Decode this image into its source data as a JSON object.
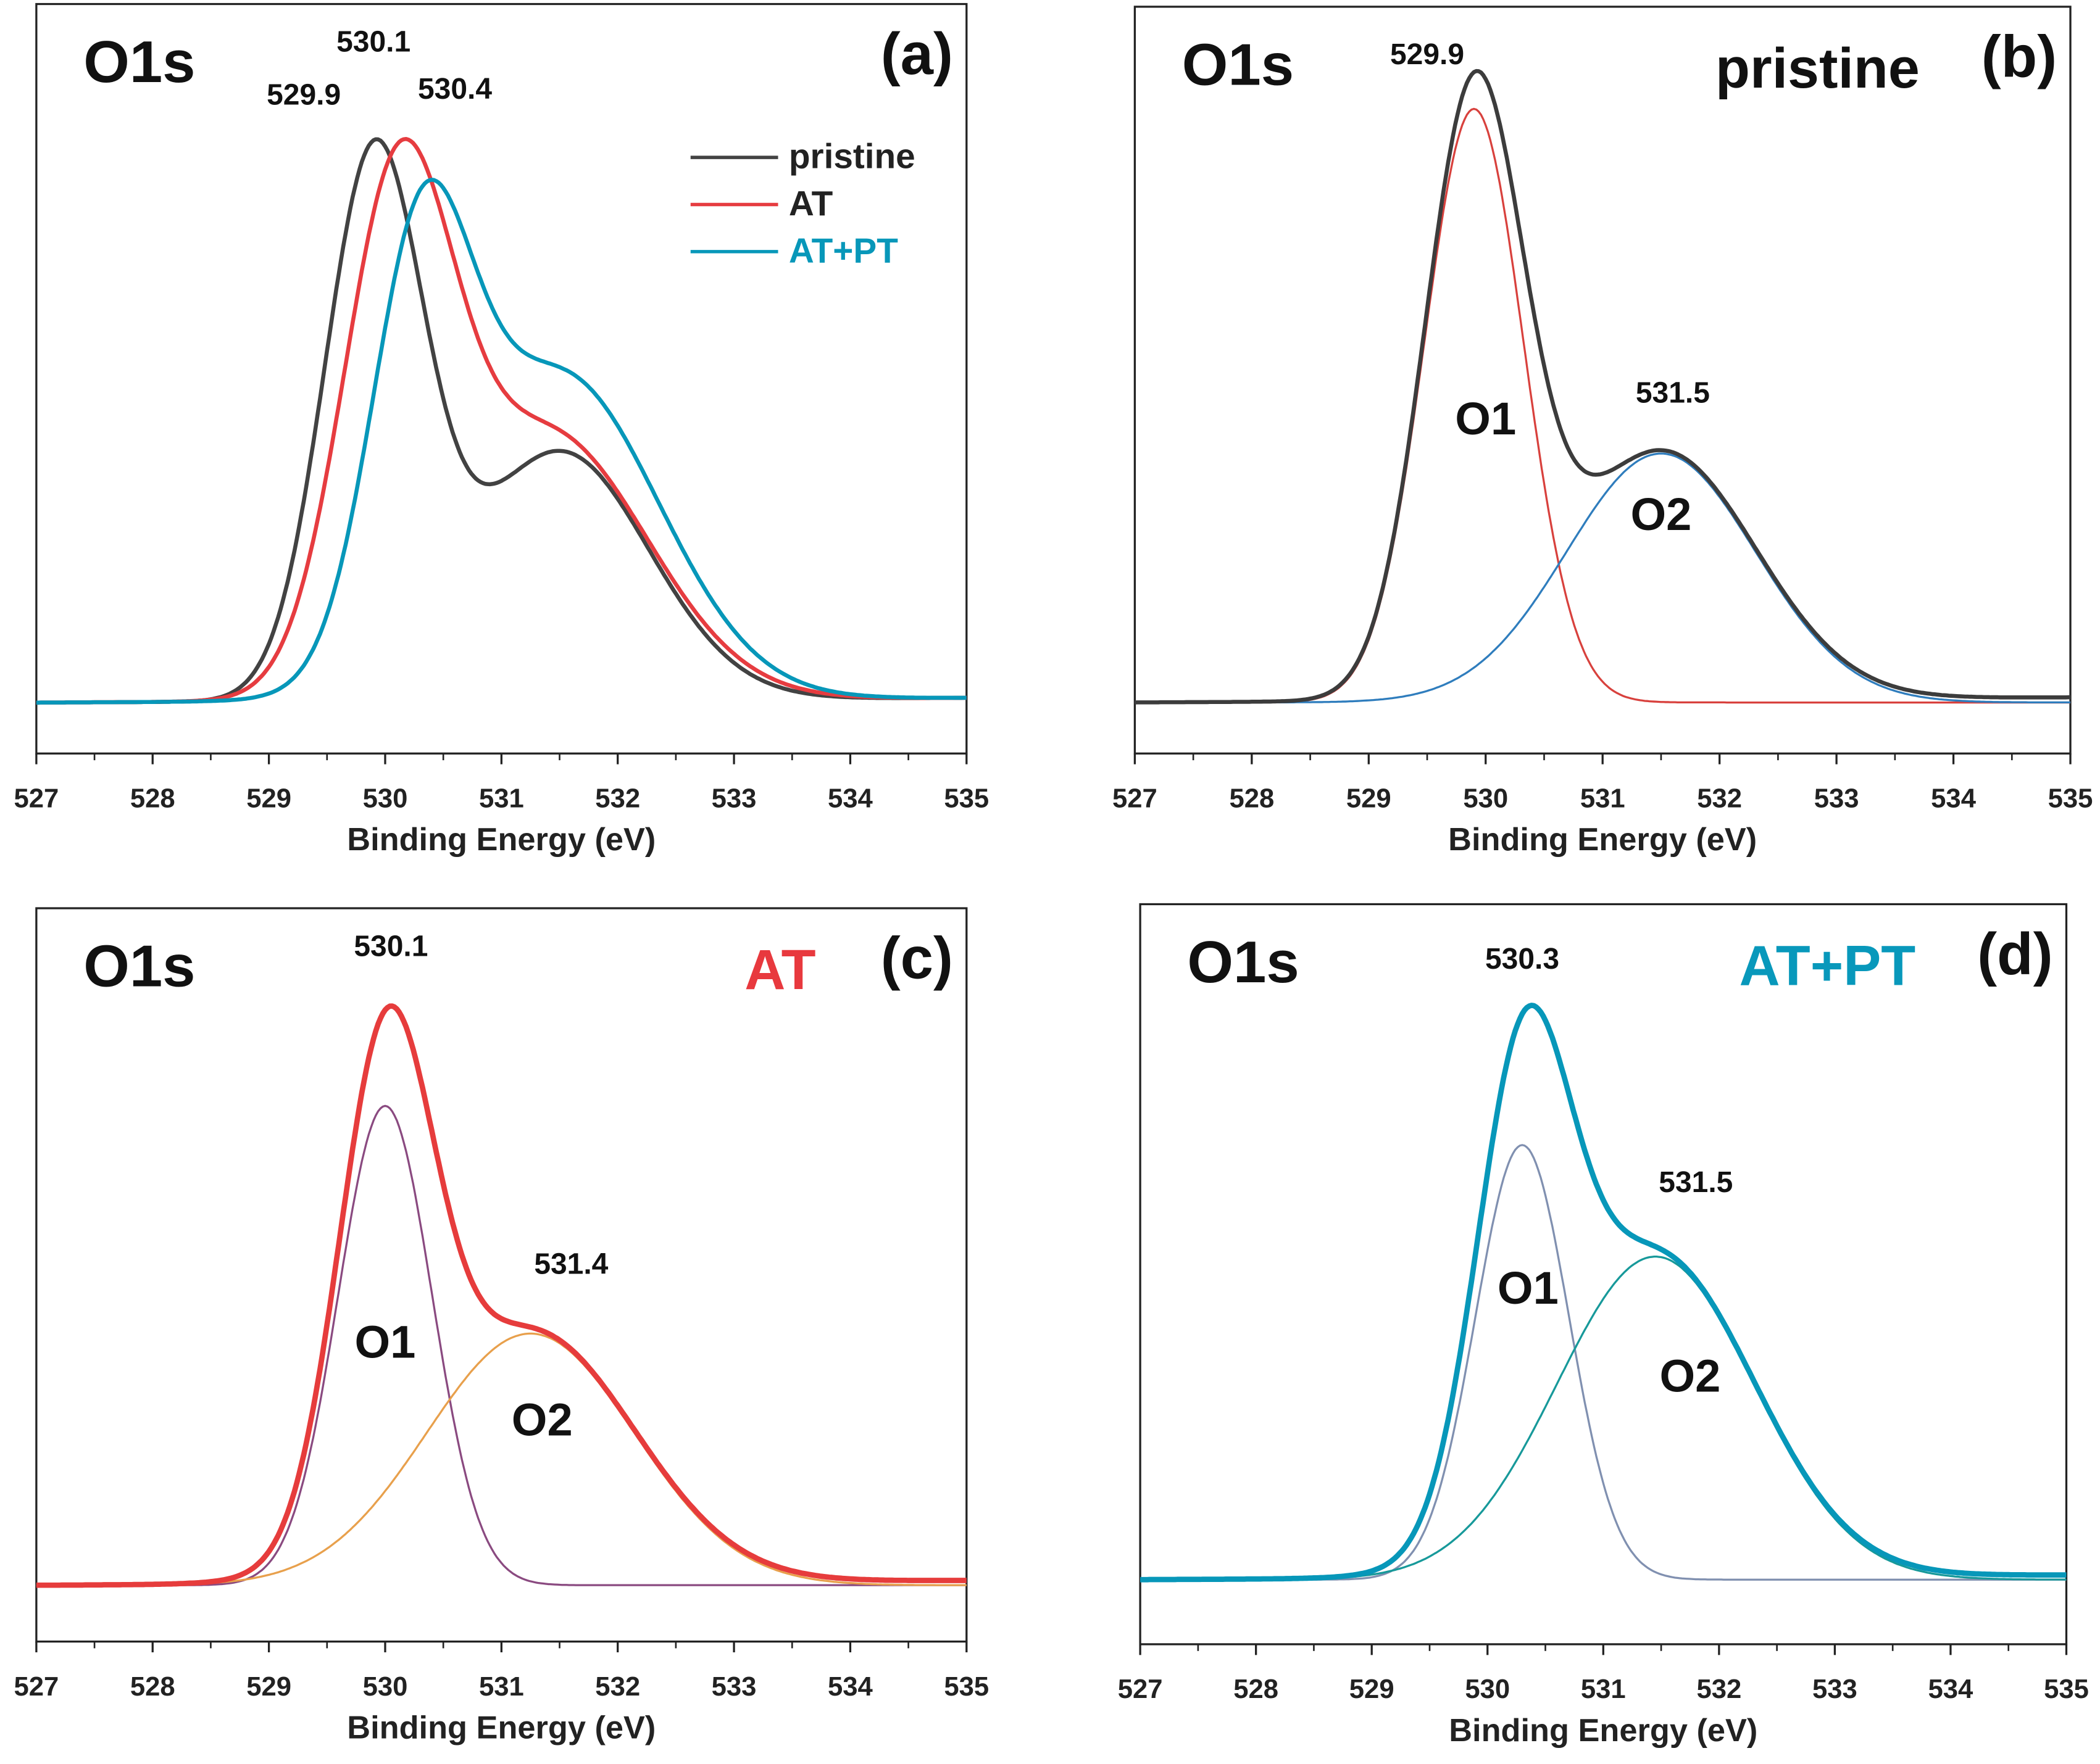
{
  "chart_data": [
    {
      "type": "line",
      "panel_label": "(a)",
      "title": "O1s",
      "xlabel": "Binding Energy (eV)",
      "ylabel": "",
      "xlim": [
        527,
        535
      ],
      "ylim": [
        -0.086,
        1.18
      ],
      "x_ticks": [
        "527",
        "528",
        "529",
        "530",
        "531",
        "532",
        "533",
        "534",
        "535"
      ],
      "legend": {
        "placement": "top-right",
        "entries": [
          "pristine",
          "AT",
          "AT+PT"
        ]
      },
      "series": [
        {
          "name": "pristine",
          "color": "#424242",
          "components": [
            {
              "center": 529.9,
              "height": 0.9,
              "fwhm": 1.0
            },
            {
              "center": 531.5,
              "height": 0.42,
              "fwhm": 1.8
            }
          ]
        },
        {
          "name": "AT",
          "color": "#e63c40",
          "components": [
            {
              "center": 530.1,
              "height": 0.8,
              "fwhm": 1.1
            },
            {
              "center": 531.4,
              "height": 0.45,
              "fwhm": 2.0
            }
          ]
        },
        {
          "name": "AT+PT",
          "color": "#0797b9",
          "components": [
            {
              "center": 530.3,
              "height": 0.66,
              "fwhm": 1.0
            },
            {
              "center": 531.5,
              "height": 0.55,
              "fwhm": 2.0
            }
          ]
        }
      ],
      "annotations": [
        "529.9",
        "530.1",
        "530.4"
      ]
    },
    {
      "type": "line",
      "panel_label": "(b)",
      "title": "O1s",
      "sample_label": "pristine",
      "sample_color": "#111111",
      "xlabel": "Binding Energy (eV)",
      "xlim": [
        527,
        535
      ],
      "ylim": [
        -0.08,
        1.09
      ],
      "x_ticks": [
        "527",
        "528",
        "529",
        "530",
        "531",
        "532",
        "533",
        "534",
        "535"
      ],
      "envelope": {
        "name": "pristine",
        "color": "#3c3c3c"
      },
      "series": [
        {
          "name": "O1",
          "color": "#d8413d",
          "center": 529.9,
          "height": 0.93,
          "fwhm": 1.0
        },
        {
          "name": "O2",
          "color": "#2f7dbd",
          "center": 531.5,
          "height": 0.39,
          "fwhm": 1.9
        }
      ],
      "annotations": [
        "529.9",
        "531.5"
      ]
    },
    {
      "type": "line",
      "panel_label": "(c)",
      "title": "O1s",
      "sample_label": "AT",
      "sample_color": "#e8393e",
      "xlabel": "Binding Energy (eV)",
      "xlim": [
        527,
        535
      ],
      "ylim": [
        -0.094,
        1.13
      ],
      "x_ticks": [
        "527",
        "528",
        "529",
        "530",
        "531",
        "532",
        "533",
        "534",
        "535"
      ],
      "envelope": {
        "name": "AT",
        "color": "#e63c3c"
      },
      "series": [
        {
          "name": "O1",
          "color": "#8a4a80",
          "center": 530.0,
          "height": 0.8,
          "fwhm": 0.95
        },
        {
          "name": "O2",
          "color": "#e8a04c",
          "center": 531.25,
          "height": 0.42,
          "fwhm": 2.1
        }
      ],
      "annotations": [
        "530.1",
        "531.4"
      ]
    },
    {
      "type": "line",
      "panel_label": "(d)",
      "title": "O1s",
      "sample_label": "AT+PT",
      "sample_color": "#0898bb",
      "xlabel": "Binding Energy (eV)",
      "xlim": [
        527,
        535
      ],
      "ylim": [
        -0.11,
        1.15
      ],
      "x_ticks": [
        "527",
        "528",
        "529",
        "530",
        "531",
        "532",
        "533",
        "534",
        "535"
      ],
      "envelope": {
        "name": "AT+PT",
        "color": "#0797b9"
      },
      "series": [
        {
          "name": "O1",
          "color": "#8090b0",
          "center": 530.3,
          "height": 0.74,
          "fwhm": 0.95
        },
        {
          "name": "O2",
          "color": "#17999a",
          "center": 531.45,
          "height": 0.55,
          "fwhm": 2.0
        }
      ],
      "annotations": [
        "530.3",
        "531.5"
      ]
    }
  ]
}
